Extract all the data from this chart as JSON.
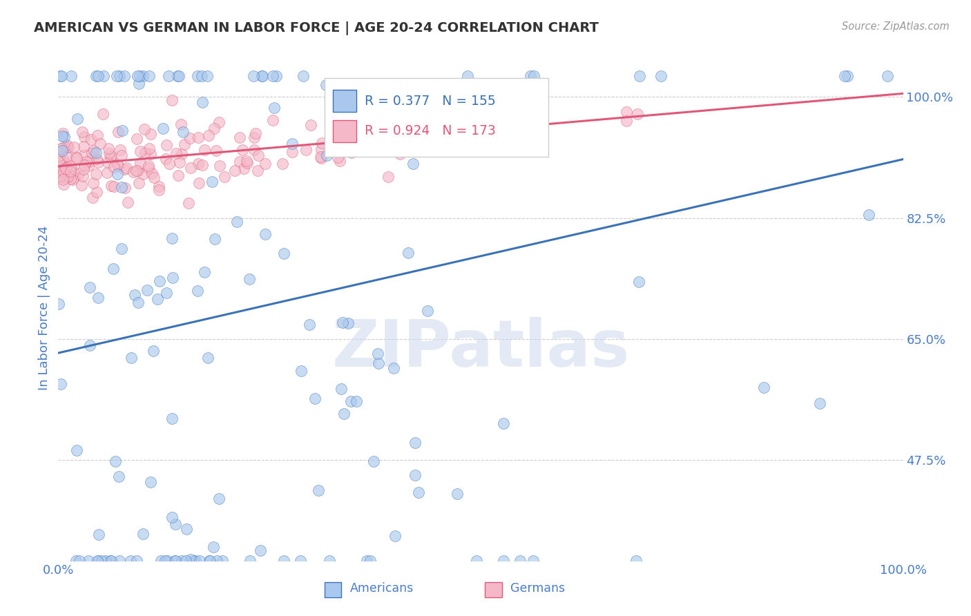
{
  "title": "AMERICAN VS GERMAN IN LABOR FORCE | AGE 20-24 CORRELATION CHART",
  "source_text": "Source: ZipAtlas.com",
  "ylabel": "In Labor Force | Age 20-24",
  "r_american": 0.377,
  "n_american": 155,
  "r_german": 0.924,
  "n_german": 173,
  "american_color": "#aac8ee",
  "german_color": "#f4b8c8",
  "american_line_color": "#3a72b8",
  "german_line_color": "#e05878",
  "background_color": "#ffffff",
  "title_color": "#333333",
  "axis_label_color": "#4a7cc7",
  "watermark_text": "ZIPatlas",
  "xlim": [
    0.0,
    1.0
  ],
  "ylim": [
    0.33,
    1.06
  ],
  "yticks": [
    0.475,
    0.65,
    0.825,
    1.0
  ],
  "ytick_labels": [
    "47.5%",
    "65.0%",
    "82.5%",
    "100.0%"
  ],
  "xtick_labels": [
    "0.0%",
    "100.0%"
  ],
  "am_line_start": 0.63,
  "am_line_end": 0.91,
  "ge_line_start": 0.9,
  "ge_line_end": 1.005
}
